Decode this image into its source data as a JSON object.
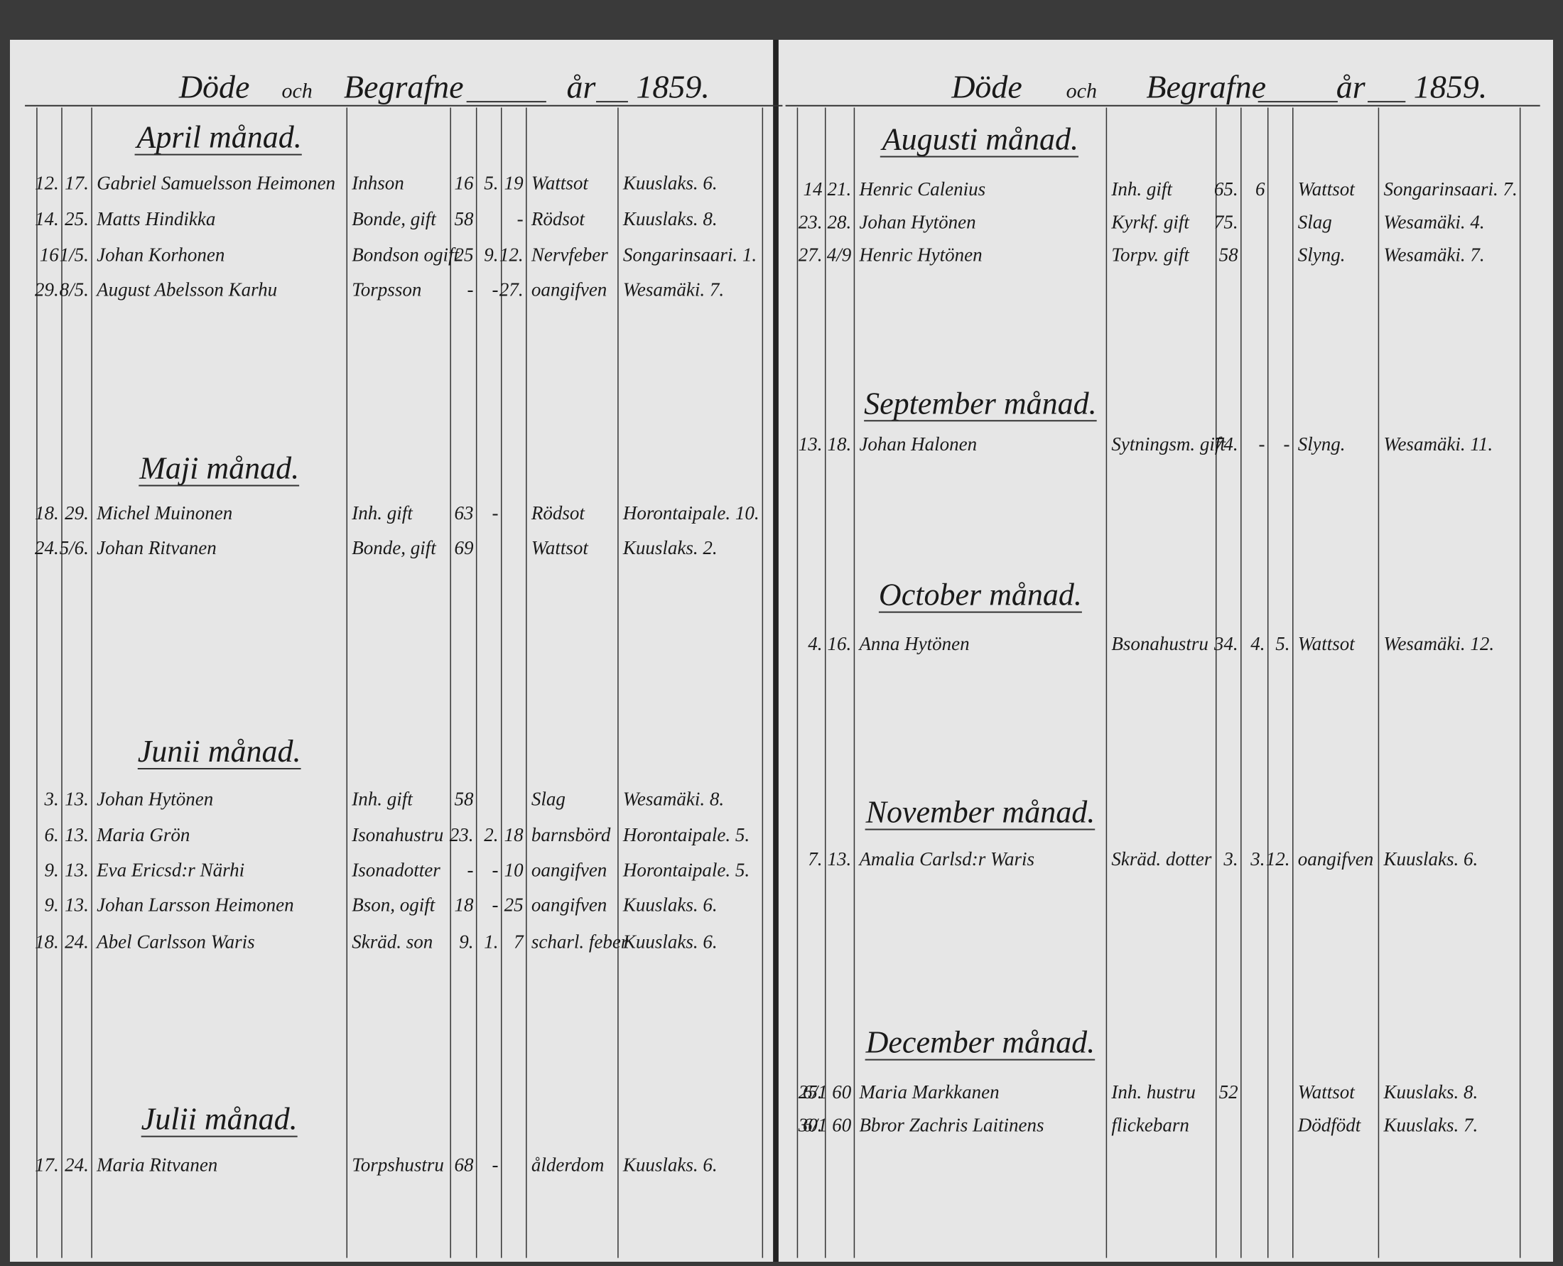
{
  "pages": [
    {
      "header": {
        "died": "Döde",
        "and": "och",
        "buried": "Begrafne",
        "year_label": "år",
        "year": "1859."
      },
      "sections": [
        {
          "title": "April månad.",
          "rows": [
            {
              "death": "12.",
              "burial": "17.",
              "name": "Gabriel Samuelsson Heimonen",
              "status": "Inhson",
              "years": "16",
              "months": "5.",
              "days": "19",
              "cause": "Wattsot",
              "village": "Kuuslaks. 6."
            },
            {
              "death": "14.",
              "burial": "25.",
              "name": "Matts Hindikka",
              "status": "Bonde, gift",
              "years": "58",
              "days": "-",
              "cause": "Rödsot",
              "village": "Kuuslaks. 8."
            },
            {
              "death": "16",
              "burial": "1/5.",
              "name": "Johan Korhonen",
              "status": "Bondson ogift",
              "years": "25",
              "months": "9.",
              "days": "12.",
              "cause": "Nervfeber",
              "village": "Songarinsaari. 1."
            },
            {
              "death": "29.",
              "burial": "8/5.",
              "name": "August Abelsson Karhu",
              "status": "Torpsson",
              "years": "-",
              "months": "-",
              "days": "27.",
              "cause": "oangifven",
              "village": "Wesamäki. 7."
            }
          ]
        },
        {
          "title": "Maji månad.",
          "rows": [
            {
              "death": "18.",
              "burial": "29.",
              "name": "Michel Muinonen",
              "status": "Inh. gift",
              "years": "63",
              "months": "-",
              "cause": "Rödsot",
              "village": "Horontaipale. 10."
            },
            {
              "death": "24.",
              "burial": "5/6.",
              "name": "Johan Ritvanen",
              "status": "Bonde, gift",
              "years": "69",
              "cause": "Wattsot",
              "village": "Kuuslaks. 2."
            }
          ]
        },
        {
          "title": "Junii månad.",
          "rows": [
            {
              "death": "3.",
              "burial": "13.",
              "name": "Johan Hytönen",
              "status": "Inh. gift",
              "years": "58",
              "cause": "Slag",
              "village": "Wesamäki. 8."
            },
            {
              "death": "6.",
              "burial": "13.",
              "name": "Maria Grön",
              "status": "Isonahustru",
              "years": "23.",
              "months": "2.",
              "days": "18",
              "cause": "barnsbörd",
              "village": "Horontaipale. 5."
            },
            {
              "death": "9.",
              "burial": "13.",
              "name": "Eva Ericsd:r Närhi",
              "status": "Isonadotter",
              "years": "-",
              "months": "-",
              "days": "10",
              "cause": "oangifven",
              "village": "Horontaipale. 5."
            },
            {
              "death": "9.",
              "burial": "13.",
              "name": "Johan Larsson Heimonen",
              "status": "Bson, ogift",
              "years": "18",
              "months": "-",
              "days": "25",
              "cause": "oangifven",
              "village": "Kuuslaks. 6."
            },
            {
              "death": "18.",
              "burial": "24.",
              "name": "Abel Carlsson Waris",
              "status": "Skräd. son",
              "years": "9.",
              "months": "1.",
              "days": "7",
              "cause": "scharl. feber",
              "village": "Kuuslaks. 6."
            }
          ]
        },
        {
          "title": "Julii månad.",
          "rows": [
            {
              "death": "17.",
              "burial": "24.",
              "name": "Maria Ritvanen",
              "status": "Torpshustru",
              "years": "68",
              "months": "-",
              "cause": "ålderdom",
              "village": "Kuuslaks. 6."
            }
          ]
        }
      ]
    },
    {
      "header": {
        "died": "Döde",
        "and": "och",
        "buried": "Begrafne",
        "year_label": "år",
        "year": "1859."
      },
      "sections": [
        {
          "title": "Augusti månad.",
          "rows": [
            {
              "death": "14",
              "burial": "21.",
              "name": "Henric Calenius",
              "status": "Inh. gift",
              "years": "65.",
              "months": "6",
              "cause": "Wattsot",
              "village": "Songarinsaari. 7."
            },
            {
              "death": "23.",
              "burial": "28.",
              "name": "Johan Hytönen",
              "status": "Kyrkf. gift",
              "years": "75.",
              "cause": "Slag",
              "village": "Wesamäki. 4."
            },
            {
              "death": "27.",
              "burial": "4/9",
              "name": "Henric Hytönen",
              "status": "Torpv. gift",
              "years": "58",
              "cause": "Slyng.",
              "village": "Wesamäki. 7."
            }
          ]
        },
        {
          "title": "September månad.",
          "rows": [
            {
              "death": "13.",
              "burial": "18.",
              "name": "Johan Halonen",
              "status": "Sytningsm. gift",
              "years": "74.",
              "months": "-",
              "days": "-",
              "cause": "Slyng.",
              "village": "Wesamäki. 11."
            }
          ]
        },
        {
          "title": "October månad.",
          "rows": [
            {
              "death": "4.",
              "burial": "16.",
              "name": "Anna Hytönen",
              "status": "Bsonahustru",
              "years": "34.",
              "months": "4.",
              "days": "5.",
              "cause": "Wattsot",
              "village": "Wesamäki. 12."
            }
          ]
        },
        {
          "title": "November månad.",
          "rows": [
            {
              "death": "7.",
              "burial": "13.",
              "name": "Amalia Carlsd:r Waris",
              "status": "Skräd. dotter",
              "years": "3.",
              "months": "3.",
              "days": "12.",
              "cause": "oangifven",
              "village": "Kuuslaks. 6."
            }
          ]
        },
        {
          "title": "December månad.",
          "rows": [
            {
              "death": "25.",
              "burial": "6/1 60",
              "name": "Maria Markkanen",
              "status": "Inh. hustru",
              "years": "52",
              "cause": "Wattsot",
              "village": "Kuuslaks. 8."
            },
            {
              "death": "30.",
              "burial": "6/1 60",
              "name": "Bbror Zachris Laitinens",
              "status": "flickebarn",
              "cause": "Dödfödt",
              "village": "Kuuslaks. 7."
            }
          ]
        }
      ]
    }
  ]
}
